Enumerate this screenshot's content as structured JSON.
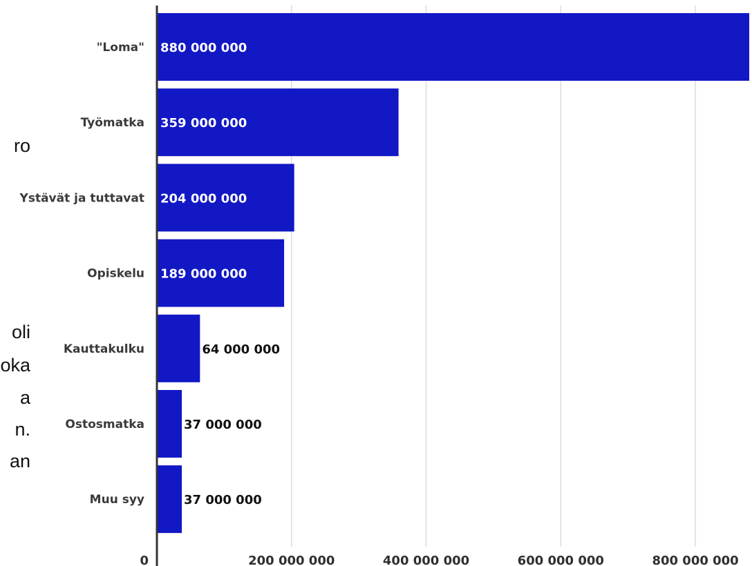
{
  "side_text_fragments": [
    "ro",
    "",
    "oli",
    "oka",
    "a",
    "n.",
    "an"
  ],
  "chart_data": {
    "type": "bar",
    "orientation": "horizontal",
    "categories": [
      "\"Loma\"",
      "Työmatka",
      "Ystävät ja tuttavat",
      "Opiskelu",
      "Kauttakulku",
      "Ostosmatka",
      "Muu syy"
    ],
    "values": [
      880000000,
      359000000,
      204000000,
      189000000,
      64000000,
      37000000,
      37000000
    ],
    "value_labels": [
      "880 000 000",
      "359 000 000",
      "204 000 000",
      "189 000 000",
      "64 000 000",
      "37 000 000",
      "37 000 000"
    ],
    "x_ticks": [
      0,
      200000000,
      400000000,
      600000000,
      800000000
    ],
    "x_tick_labels": [
      "0",
      "200 000 000",
      "400 000 000",
      "600 000 000",
      "800 000 000"
    ],
    "xlim": [
      0,
      880000000
    ],
    "title": "",
    "xlabel": "",
    "ylabel": "",
    "grid": true,
    "legend": "none",
    "colors": {
      "bar": "#1218c4",
      "label_inside": "#ffffff",
      "label_outside": "#111111",
      "grid": "#dcdcdc",
      "axis": "#333333"
    }
  }
}
